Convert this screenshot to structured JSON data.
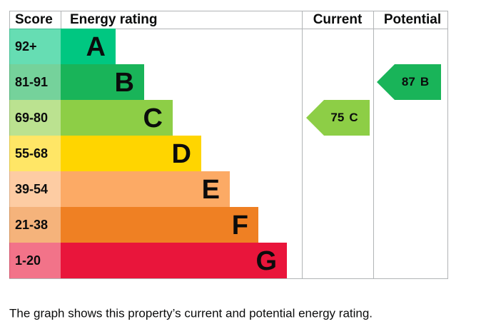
{
  "header": {
    "score": "Score",
    "rating": "Energy rating",
    "current": "Current",
    "potential": "Potential"
  },
  "bands": [
    {
      "score": "92+",
      "letter": "A",
      "color": "#00c781"
    },
    {
      "score": "81-91",
      "letter": "B",
      "color": "#19b459"
    },
    {
      "score": "69-80",
      "letter": "C",
      "color": "#8dce46"
    },
    {
      "score": "55-68",
      "letter": "D",
      "color": "#ffd500"
    },
    {
      "score": "39-54",
      "letter": "E",
      "color": "#fcaa65"
    },
    {
      "score": "21-38",
      "letter": "F",
      "color": "#ef8023"
    },
    {
      "score": "1-20",
      "letter": "G",
      "color": "#e9153b"
    }
  ],
  "current": {
    "value": 75,
    "letter": "C"
  },
  "potential": {
    "value": 87,
    "letter": "B"
  },
  "caption": "The graph shows this property’s current and potential energy rating."
}
